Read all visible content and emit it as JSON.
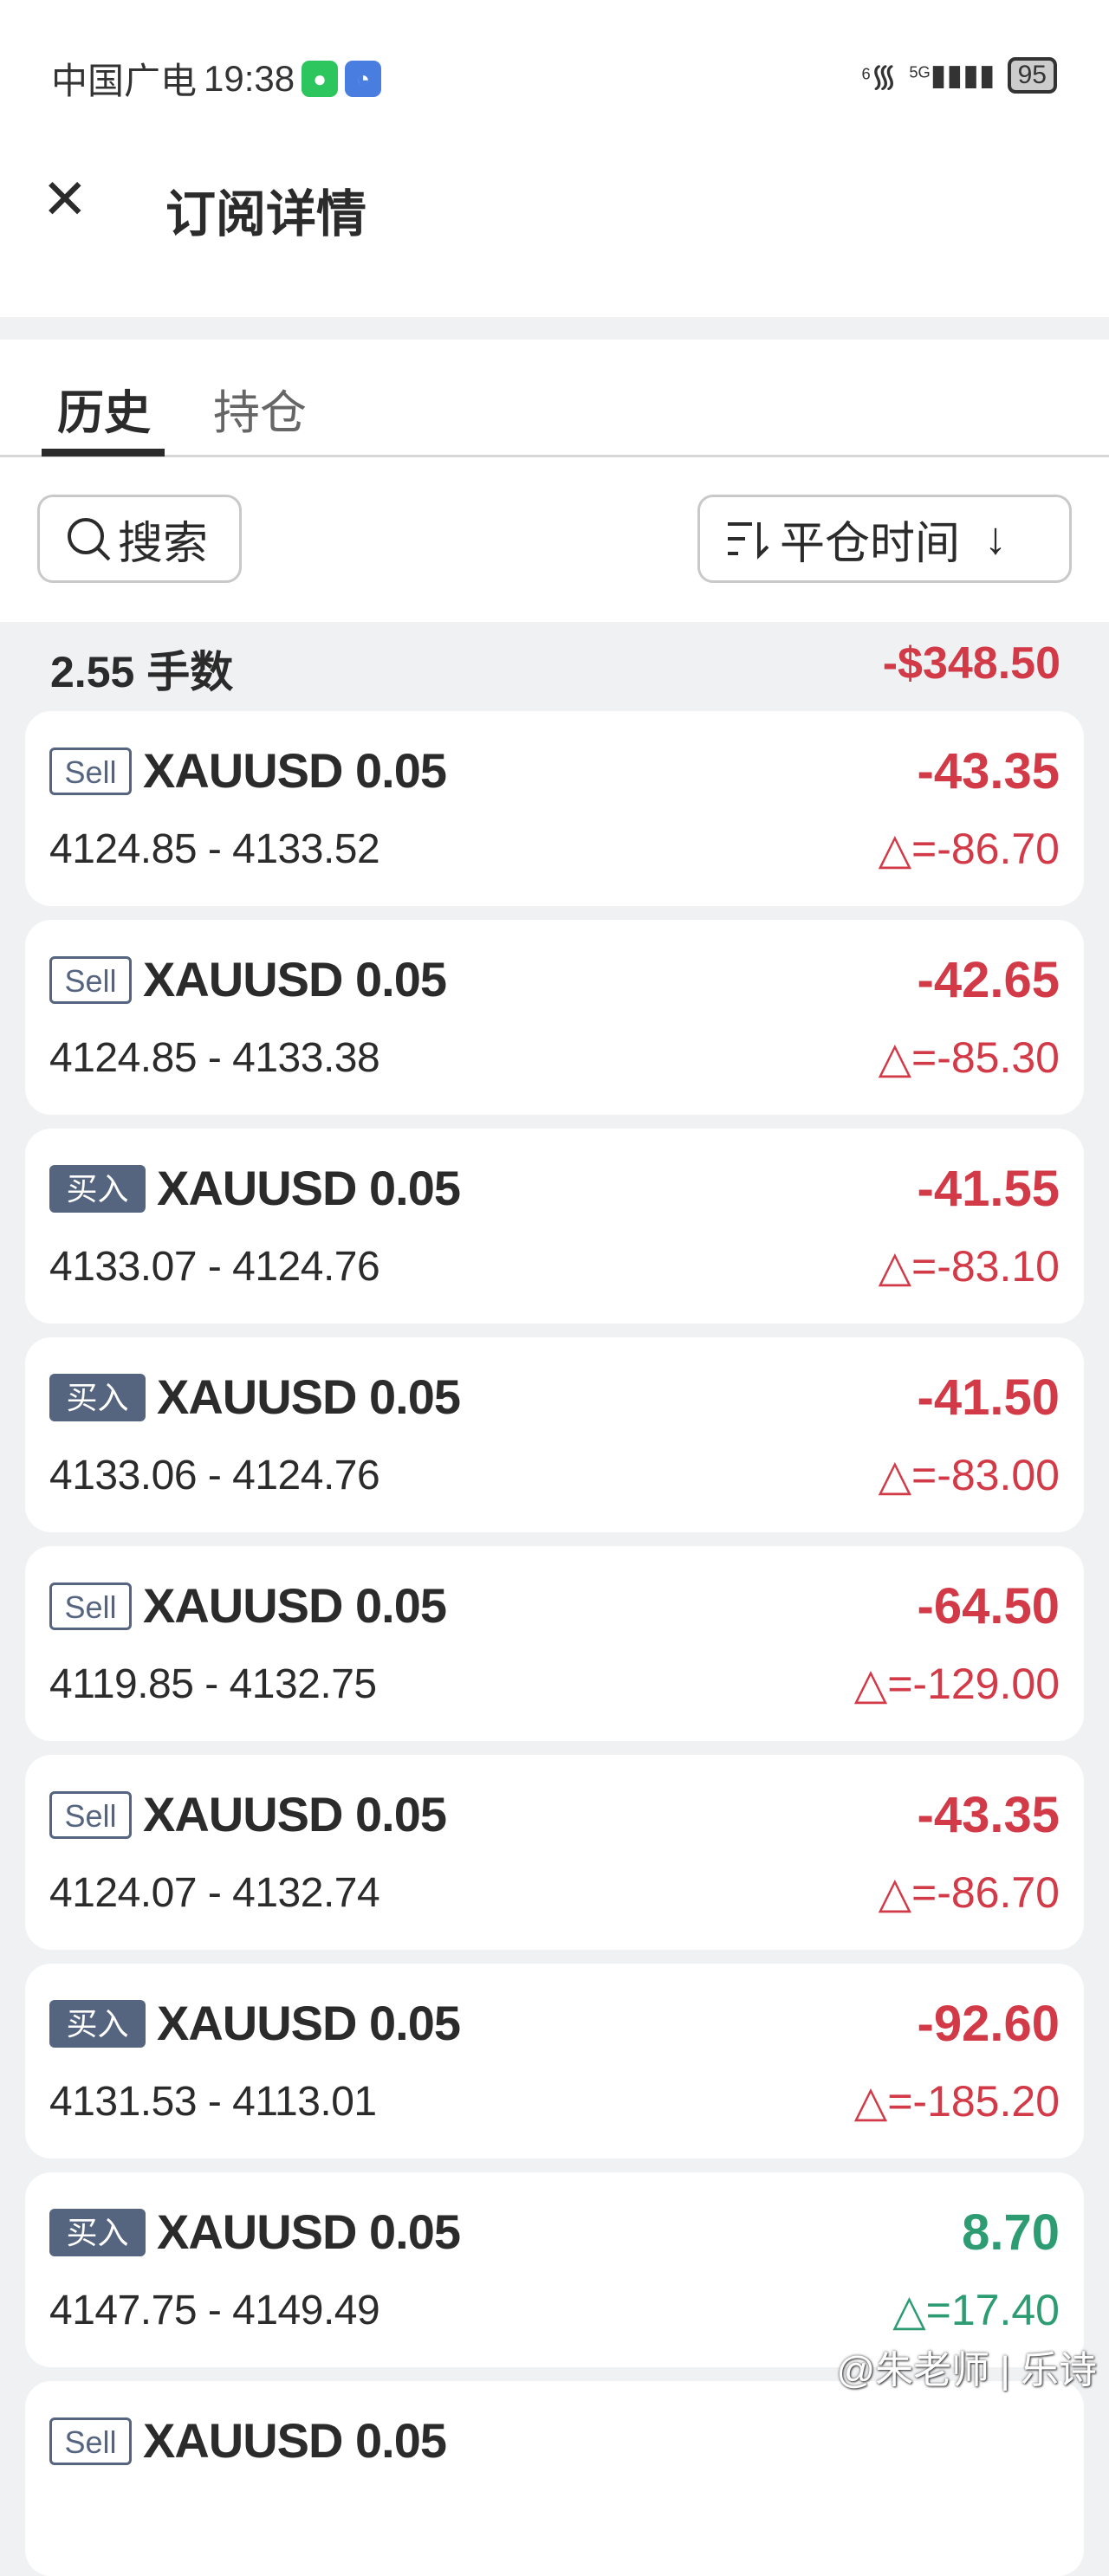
{
  "status_bar": {
    "carrier": "中国广电",
    "time": "19:38",
    "network": "5G",
    "wifi_label": "6",
    "battery": "95"
  },
  "header": {
    "title": "订阅详情",
    "close_icon": "close-icon"
  },
  "tabs": [
    {
      "label": "历史",
      "active": true
    },
    {
      "label": "持仓",
      "active": false
    }
  ],
  "toolbar": {
    "search_label": "搜索",
    "sort_label": "平仓时间",
    "sort_direction_icon": "↓"
  },
  "summary": {
    "lots": "2.55 手数",
    "total": "-$348.50"
  },
  "colors": {
    "loss": "#d23a48",
    "profit": "#2e9c73",
    "badge": "#56657f"
  },
  "trades": [
    {
      "side": "Sell",
      "symbol": "XAUUSD 0.05",
      "range": "4124.85 - 4133.52",
      "pnl": "-43.35",
      "delta": "△=-86.70",
      "positive": false
    },
    {
      "side": "Sell",
      "symbol": "XAUUSD 0.05",
      "range": "4124.85 - 4133.38",
      "pnl": "-42.65",
      "delta": "△=-85.30",
      "positive": false
    },
    {
      "side": "买入",
      "symbol": "XAUUSD 0.05",
      "range": "4133.07 - 4124.76",
      "pnl": "-41.55",
      "delta": "△=-83.10",
      "positive": false
    },
    {
      "side": "买入",
      "symbol": "XAUUSD 0.05",
      "range": "4133.06 - 4124.76",
      "pnl": "-41.50",
      "delta": "△=-83.00",
      "positive": false
    },
    {
      "side": "Sell",
      "symbol": "XAUUSD 0.05",
      "range": "4119.85 - 4132.75",
      "pnl": "-64.50",
      "delta": "△=-129.00",
      "positive": false
    },
    {
      "side": "Sell",
      "symbol": "XAUUSD 0.05",
      "range": "4124.07 - 4132.74",
      "pnl": "-43.35",
      "delta": "△=-86.70",
      "positive": false
    },
    {
      "side": "买入",
      "symbol": "XAUUSD 0.05",
      "range": "4131.53 - 4113.01",
      "pnl": "-92.60",
      "delta": "△=-185.20",
      "positive": false
    },
    {
      "side": "买入",
      "symbol": "XAUUSD 0.05",
      "range": "4147.75 - 4149.49",
      "pnl": "8.70",
      "delta": "△=17.40",
      "positive": true
    },
    {
      "side": "Sell",
      "symbol": "XAUUSD 0.05",
      "positive": false
    }
  ],
  "watermark": "@朱老师 | 乐诗"
}
